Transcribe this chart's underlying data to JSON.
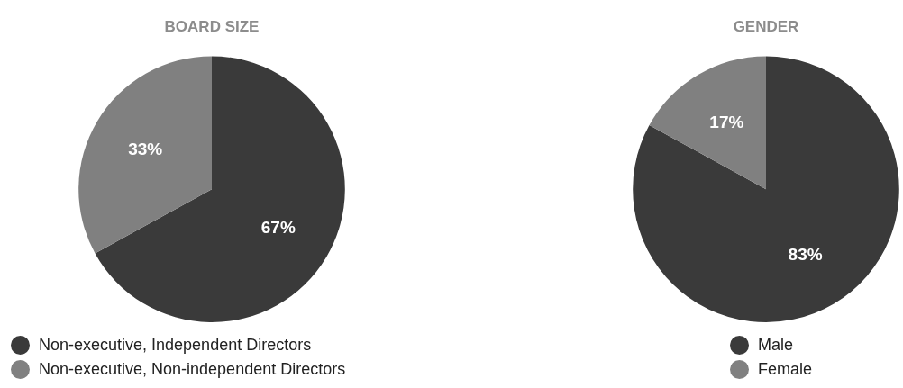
{
  "chart_data": [
    {
      "type": "pie",
      "title": "BOARD SIZE",
      "categories": [
        "Non-executive, Independent Directors",
        "Non-executive, Non-independent Directors"
      ],
      "values": [
        67,
        33
      ],
      "colors": [
        "#3a3a3a",
        "#808080"
      ],
      "value_labels": [
        "67%",
        "33%"
      ],
      "legend": "bottom left"
    },
    {
      "type": "pie",
      "title": "GENDER",
      "categories": [
        "Male",
        "Female"
      ],
      "values": [
        83,
        17
      ],
      "colors": [
        "#3a3a3a",
        "#808080"
      ],
      "value_labels": [
        "83%",
        "17%"
      ],
      "legend": "bottom left"
    }
  ]
}
